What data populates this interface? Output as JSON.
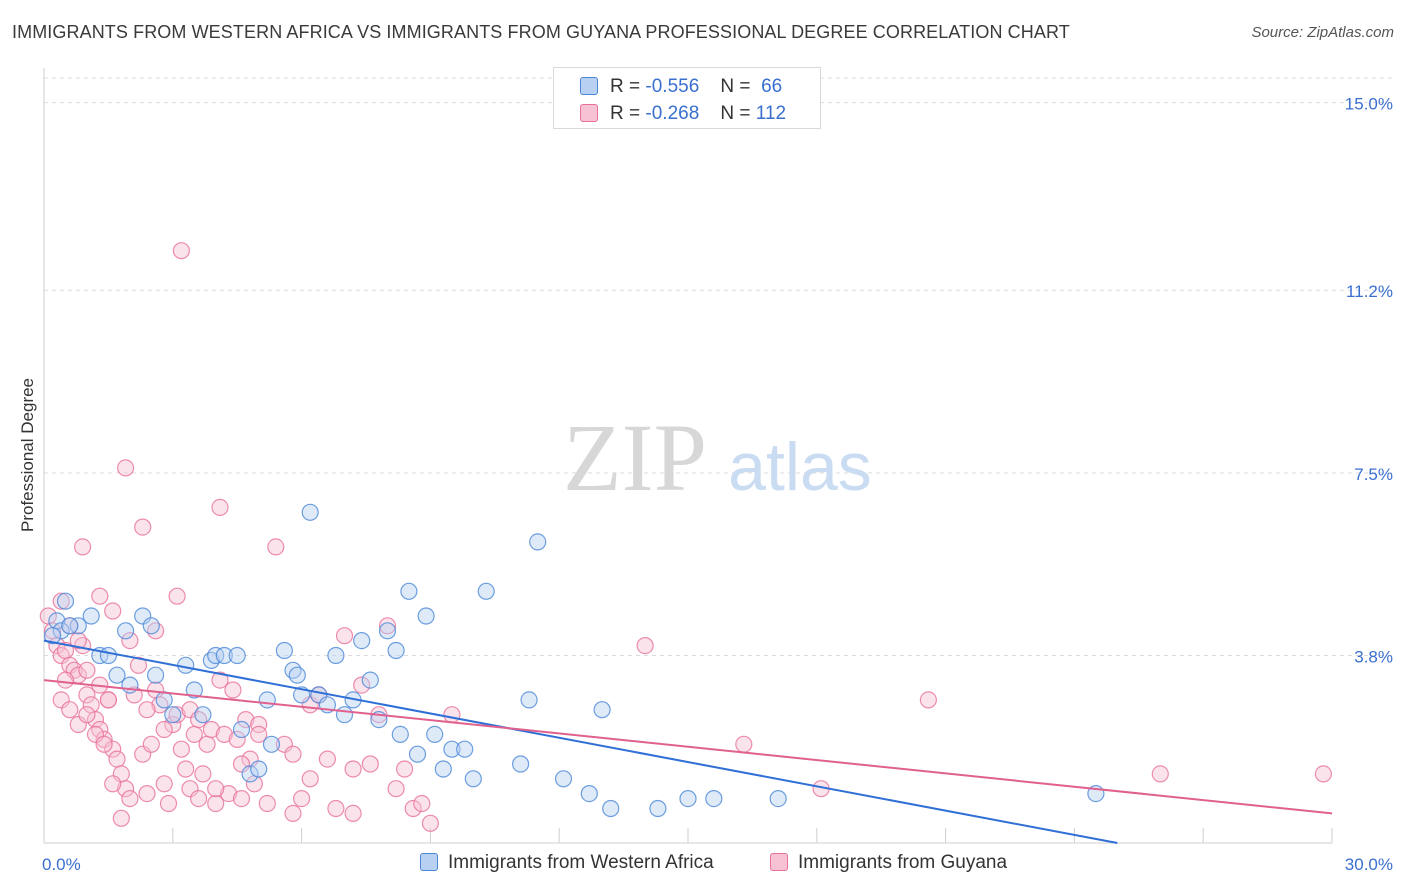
{
  "title": "IMMIGRANTS FROM WESTERN AFRICA VS IMMIGRANTS FROM GUYANA PROFESSIONAL DEGREE CORRELATION CHART",
  "source": "Source: ZipAtlas.com",
  "watermark": {
    "zip": "ZIP",
    "atlas": "atlas"
  },
  "legend": {
    "series1": {
      "r_label": "R =",
      "r_value": "-0.556",
      "n_label": "N =",
      "n_value": "66"
    },
    "series2": {
      "r_label": "R =",
      "r_value": "-0.268",
      "n_label": "N =",
      "n_value": "112"
    }
  },
  "colors": {
    "blue": "#4a87d8",
    "blue_fill": "#b8d0f2",
    "pink": "#e8709a",
    "pink_fill": "#f6c2d4",
    "blue_line": "#2f6fd6",
    "pink_line": "#e0608e",
    "tick_label": "#3a6fd0"
  },
  "chart_data": {
    "type": "scatter",
    "title": "IMMIGRANTS FROM WESTERN AFRICA VS IMMIGRANTS FROM GUYANA PROFESSIONAL DEGREE CORRELATION CHART",
    "xlabel": "",
    "ylabel": "Professional Degree",
    "xlim": [
      0,
      30
    ],
    "ylim": [
      0,
      15.5
    ],
    "x_tick_labels": [
      "0.0%",
      "30.0%"
    ],
    "y_ticks": [
      3.8,
      7.5,
      11.2,
      15.0
    ],
    "y_tick_labels": [
      "3.8%",
      "7.5%",
      "11.2%",
      "15.0%"
    ],
    "grid": true,
    "legend_position": "top-center",
    "series": [
      {
        "name": "Immigrants from Western Africa",
        "color": "blue",
        "trend": {
          "x": [
            0,
            25
          ],
          "y": [
            4.1,
            0.0
          ]
        },
        "points": [
          [
            0.3,
            4.5
          ],
          [
            0.4,
            4.3
          ],
          [
            0.5,
            4.9
          ],
          [
            0.8,
            4.4
          ],
          [
            1.1,
            4.6
          ],
          [
            1.3,
            3.8
          ],
          [
            1.5,
            3.8
          ],
          [
            1.7,
            3.4
          ],
          [
            1.9,
            4.3
          ],
          [
            2.0,
            3.2
          ],
          [
            2.3,
            4.6
          ],
          [
            2.5,
            4.4
          ],
          [
            2.6,
            3.4
          ],
          [
            2.8,
            2.9
          ],
          [
            3.0,
            2.6
          ],
          [
            3.3,
            3.6
          ],
          [
            3.5,
            3.1
          ],
          [
            3.7,
            2.6
          ],
          [
            3.9,
            3.7
          ],
          [
            4.0,
            3.8
          ],
          [
            4.2,
            3.8
          ],
          [
            4.5,
            3.8
          ],
          [
            4.6,
            2.3
          ],
          [
            4.8,
            1.4
          ],
          [
            5.0,
            1.5
          ],
          [
            5.2,
            2.9
          ],
          [
            5.3,
            2.0
          ],
          [
            5.6,
            3.9
          ],
          [
            5.8,
            3.5
          ],
          [
            5.9,
            3.4
          ],
          [
            6.0,
            3.0
          ],
          [
            6.2,
            6.7
          ],
          [
            6.4,
            3.0
          ],
          [
            6.6,
            2.8
          ],
          [
            6.8,
            3.8
          ],
          [
            7.0,
            2.6
          ],
          [
            7.2,
            2.9
          ],
          [
            7.4,
            4.1
          ],
          [
            7.6,
            3.3
          ],
          [
            7.8,
            2.5
          ],
          [
            8.0,
            4.3
          ],
          [
            8.2,
            3.9
          ],
          [
            8.3,
            2.2
          ],
          [
            8.5,
            5.1
          ],
          [
            8.7,
            1.8
          ],
          [
            8.9,
            4.6
          ],
          [
            9.1,
            2.2
          ],
          [
            9.3,
            1.5
          ],
          [
            9.5,
            1.9
          ],
          [
            9.8,
            1.9
          ],
          [
            10.0,
            1.3
          ],
          [
            10.3,
            5.1
          ],
          [
            11.1,
            1.6
          ],
          [
            11.3,
            2.9
          ],
          [
            11.5,
            6.1
          ],
          [
            12.1,
            1.3
          ],
          [
            12.7,
            1.0
          ],
          [
            13.0,
            2.7
          ],
          [
            13.2,
            0.7
          ],
          [
            14.3,
            0.7
          ],
          [
            15.0,
            0.9
          ],
          [
            15.6,
            0.9
          ],
          [
            17.1,
            0.9
          ],
          [
            24.5,
            1.0
          ],
          [
            0.2,
            4.2
          ],
          [
            0.6,
            4.4
          ]
        ]
      },
      {
        "name": "Immigrants from Guyana",
        "color": "pink",
        "trend": {
          "x": [
            0,
            30
          ],
          "y": [
            3.3,
            0.6
          ]
        },
        "points": [
          [
            0.1,
            4.6
          ],
          [
            0.2,
            4.3
          ],
          [
            0.3,
            4.0
          ],
          [
            0.4,
            3.8
          ],
          [
            0.5,
            3.9
          ],
          [
            0.6,
            3.6
          ],
          [
            0.7,
            3.5
          ],
          [
            0.8,
            3.4
          ],
          [
            0.9,
            4.0
          ],
          [
            1.0,
            3.0
          ],
          [
            1.1,
            2.8
          ],
          [
            1.2,
            2.5
          ],
          [
            1.3,
            2.3
          ],
          [
            1.4,
            2.1
          ],
          [
            1.5,
            2.9
          ],
          [
            1.6,
            1.9
          ],
          [
            1.7,
            1.7
          ],
          [
            1.8,
            1.4
          ],
          [
            1.9,
            1.1
          ],
          [
            2.0,
            0.9
          ],
          [
            0.4,
            2.9
          ],
          [
            0.6,
            2.7
          ],
          [
            0.8,
            2.4
          ],
          [
            1.0,
            2.6
          ],
          [
            1.2,
            2.2
          ],
          [
            1.4,
            2.0
          ],
          [
            1.6,
            1.2
          ],
          [
            1.8,
            0.5
          ],
          [
            2.0,
            4.1
          ],
          [
            2.2,
            3.6
          ],
          [
            2.3,
            1.8
          ],
          [
            2.4,
            1.0
          ],
          [
            2.5,
            2.0
          ],
          [
            2.6,
            3.1
          ],
          [
            2.7,
            2.8
          ],
          [
            2.8,
            1.2
          ],
          [
            2.9,
            0.8
          ],
          [
            3.0,
            2.4
          ],
          [
            3.1,
            2.6
          ],
          [
            3.2,
            1.9
          ],
          [
            3.3,
            1.5
          ],
          [
            3.4,
            2.7
          ],
          [
            3.5,
            2.2
          ],
          [
            3.6,
            2.5
          ],
          [
            3.7,
            1.4
          ],
          [
            3.8,
            2.0
          ],
          [
            3.9,
            2.3
          ],
          [
            4.0,
            0.8
          ],
          [
            4.1,
            3.3
          ],
          [
            4.2,
            2.2
          ],
          [
            4.3,
            1.0
          ],
          [
            4.4,
            3.1
          ],
          [
            4.5,
            2.1
          ],
          [
            4.6,
            0.9
          ],
          [
            4.7,
            2.5
          ],
          [
            4.8,
            1.7
          ],
          [
            4.9,
            1.2
          ],
          [
            5.0,
            2.4
          ],
          [
            5.2,
            0.8
          ],
          [
            5.4,
            6.0
          ],
          [
            5.6,
            2.0
          ],
          [
            5.8,
            1.8
          ],
          [
            6.0,
            0.9
          ],
          [
            6.2,
            2.8
          ],
          [
            6.4,
            3.0
          ],
          [
            6.6,
            1.7
          ],
          [
            6.8,
            0.7
          ],
          [
            7.0,
            4.2
          ],
          [
            7.2,
            1.5
          ],
          [
            7.4,
            3.2
          ],
          [
            7.6,
            1.6
          ],
          [
            7.8,
            2.6
          ],
          [
            8.0,
            4.4
          ],
          [
            8.2,
            1.1
          ],
          [
            8.4,
            1.5
          ],
          [
            8.6,
            0.7
          ],
          [
            8.8,
            0.8
          ],
          [
            9.0,
            0.4
          ],
          [
            9.5,
            2.6
          ],
          [
            3.2,
            12.0
          ],
          [
            1.9,
            7.6
          ],
          [
            4.1,
            6.8
          ],
          [
            2.3,
            6.4
          ],
          [
            0.9,
            6.0
          ],
          [
            1.3,
            5.0
          ],
          [
            3.1,
            5.0
          ],
          [
            0.4,
            4.9
          ],
          [
            1.6,
            4.7
          ],
          [
            2.6,
            4.3
          ],
          [
            14.0,
            4.0
          ],
          [
            20.6,
            2.9
          ],
          [
            16.3,
            2.0
          ],
          [
            18.1,
            1.1
          ],
          [
            26.0,
            1.4
          ],
          [
            29.8,
            1.4
          ],
          [
            0.6,
            4.4
          ],
          [
            0.8,
            4.1
          ],
          [
            1.0,
            3.5
          ],
          [
            1.3,
            3.2
          ],
          [
            1.5,
            2.9
          ],
          [
            2.1,
            3.0
          ],
          [
            2.4,
            2.7
          ],
          [
            2.8,
            2.3
          ],
          [
            3.4,
            1.1
          ],
          [
            3.6,
            0.9
          ],
          [
            4.0,
            1.1
          ],
          [
            4.6,
            1.6
          ],
          [
            5.0,
            2.2
          ],
          [
            5.8,
            0.6
          ],
          [
            6.2,
            1.3
          ],
          [
            7.2,
            0.6
          ],
          [
            0.5,
            3.3
          ]
        ]
      }
    ]
  },
  "axis": {
    "ytick_15": "15.0%",
    "ytick_112": "11.2%",
    "ytick_75": "7.5%",
    "ytick_38": "3.8%",
    "xtick_min": "0.0%",
    "xtick_max": "30.0%",
    "ylabel": "Professional Degree"
  },
  "bottom_legend": {
    "series1": "Immigrants from Western Africa",
    "series2": "Immigrants from Guyana"
  }
}
